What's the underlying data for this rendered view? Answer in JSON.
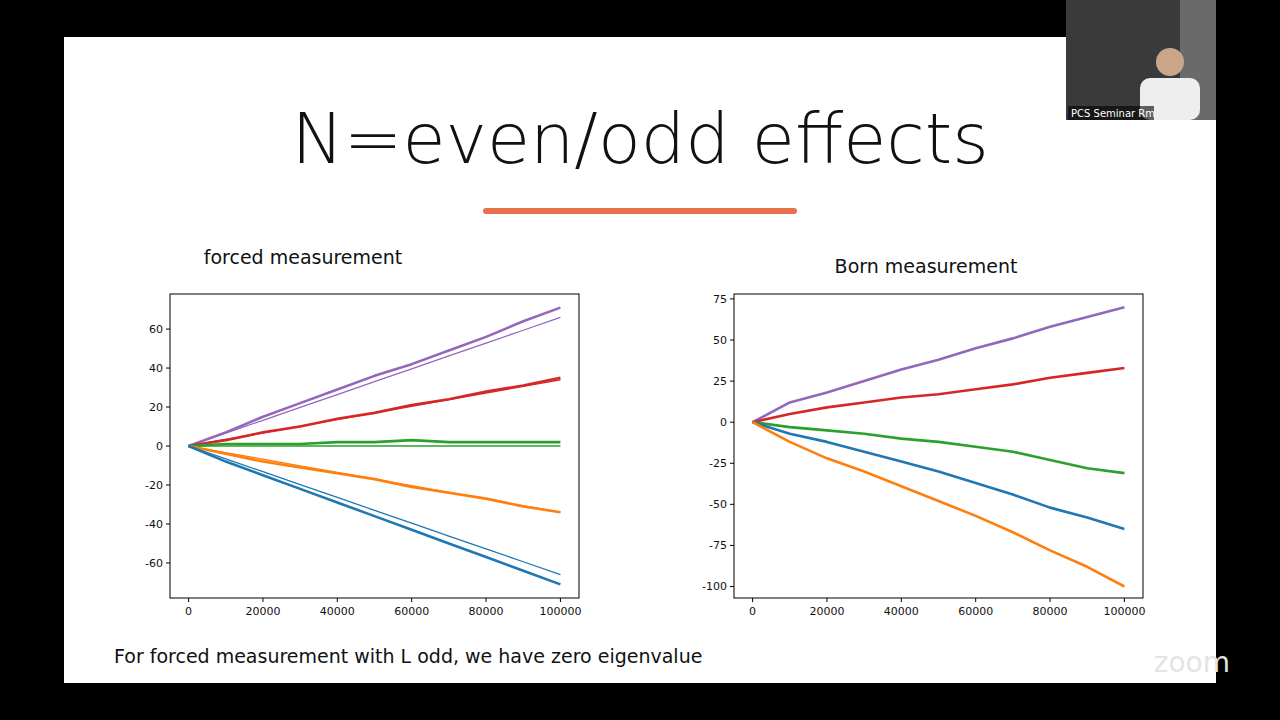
{
  "slide": {
    "title": "N=even/odd effects",
    "footnote": "For forced measurement with L odd, we have zero eigenvalue",
    "camera_label": "PCS Seminar Rm",
    "watermark": "zoom"
  },
  "chart_data": [
    {
      "type": "line",
      "title": "forced measurement",
      "x": [
        0,
        10000,
        20000,
        30000,
        40000,
        50000,
        60000,
        70000,
        80000,
        90000,
        100000
      ],
      "xlim": [
        -5000,
        105000
      ],
      "xticks": [
        0,
        20000,
        40000,
        60000,
        80000,
        100000
      ],
      "ylim": [
        -78,
        78
      ],
      "yticks": [
        -60,
        -40,
        -20,
        0,
        20,
        40,
        60
      ],
      "grid": false,
      "series": [
        {
          "color": "#9467bd",
          "line_style": "thick",
          "values": [
            0,
            7,
            15,
            22,
            29,
            36,
            42,
            49,
            56,
            64,
            71
          ]
        },
        {
          "color": "#9467bd",
          "line_style": "thin",
          "values": [
            0,
            6.6,
            13.2,
            19.8,
            26.4,
            33,
            39.6,
            46.2,
            52.8,
            59.4,
            66
          ]
        },
        {
          "color": "#d62728",
          "line_style": "thick",
          "values": [
            0,
            3,
            7,
            10,
            14,
            17,
            21,
            24,
            28,
            31,
            35
          ]
        },
        {
          "color": "#d62728",
          "line_style": "thin",
          "values": [
            0,
            3.4,
            6.8,
            10.2,
            13.6,
            17,
            20.4,
            23.8,
            27.2,
            30.6,
            34
          ]
        },
        {
          "color": "#2ca02c",
          "line_style": "thick",
          "values": [
            0,
            1,
            1,
            1,
            2,
            2,
            3,
            2,
            2,
            2,
            2
          ]
        },
        {
          "color": "#2ca02c",
          "line_style": "thin",
          "values": [
            0,
            0,
            0,
            0,
            0,
            0,
            0,
            0,
            0,
            0,
            0
          ]
        },
        {
          "color": "#ff7f0e",
          "line_style": "thick",
          "values": [
            0,
            -4,
            -8,
            -11,
            -14,
            -17,
            -21,
            -24,
            -27,
            -31,
            -34
          ]
        },
        {
          "color": "#ff7f0e",
          "line_style": "thin",
          "values": [
            0,
            -3.4,
            -6.8,
            -10.2,
            -13.6,
            -17,
            -20.4,
            -23.8,
            -27.2,
            -30.6,
            -34
          ]
        },
        {
          "color": "#1f77b4",
          "line_style": "thick",
          "values": [
            0,
            -8,
            -15,
            -22,
            -29,
            -36,
            -43,
            -50,
            -57,
            -64,
            -71
          ]
        },
        {
          "color": "#1f77b4",
          "line_style": "thin",
          "values": [
            0,
            -6.6,
            -13.2,
            -19.8,
            -26.4,
            -33,
            -39.6,
            -46.2,
            -52.8,
            -59.4,
            -66
          ]
        }
      ]
    },
    {
      "type": "line",
      "title": "Born measurement",
      "x": [
        0,
        10000,
        20000,
        30000,
        40000,
        50000,
        60000,
        70000,
        80000,
        90000,
        100000
      ],
      "xlim": [
        -5000,
        105000
      ],
      "xticks": [
        0,
        20000,
        40000,
        60000,
        80000,
        100000
      ],
      "ylim": [
        -107,
        78
      ],
      "yticks": [
        -100,
        -75,
        -50,
        -25,
        0,
        25,
        50,
        75
      ],
      "grid": false,
      "series": [
        {
          "color": "#9467bd",
          "line_style": "thick",
          "values": [
            0,
            12,
            18,
            25,
            32,
            38,
            45,
            51,
            58,
            64,
            70
          ]
        },
        {
          "color": "#d62728",
          "line_style": "thick",
          "values": [
            0,
            5,
            9,
            12,
            15,
            17,
            20,
            23,
            27,
            30,
            33
          ]
        },
        {
          "color": "#2ca02c",
          "line_style": "thick",
          "values": [
            0,
            -3,
            -5,
            -7,
            -10,
            -12,
            -15,
            -18,
            -23,
            -28,
            -31
          ]
        },
        {
          "color": "#1f77b4",
          "line_style": "thick",
          "values": [
            0,
            -7,
            -12,
            -18,
            -24,
            -30,
            -37,
            -44,
            -52,
            -58,
            -65
          ]
        },
        {
          "color": "#ff7f0e",
          "line_style": "thick",
          "values": [
            0,
            -12,
            -22,
            -30,
            -39,
            -48,
            -57,
            -67,
            -78,
            -88,
            -100
          ]
        }
      ]
    }
  ]
}
